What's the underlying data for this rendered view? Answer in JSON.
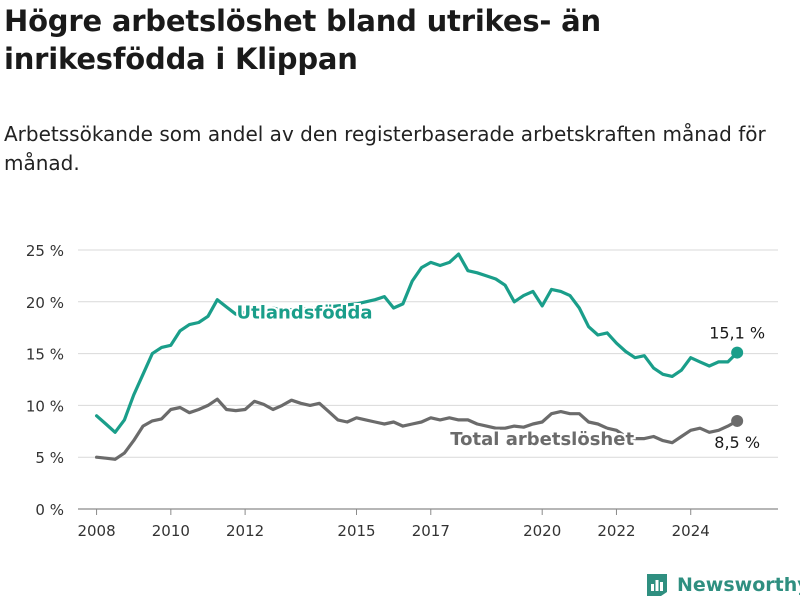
{
  "title": "Högre arbetslöshet bland utrikes- än inrikesfödda i Klippan",
  "subtitle": "Arbetssökande som andel av den registerbaserade arbetskraften månad för månad.",
  "brand": "Newsworthy",
  "colors": {
    "utlandsfodda": "#1a9e8a",
    "total": "#6b6b6b",
    "grid": "#d9d9d9",
    "brand": "#2f8f80"
  },
  "chart_data": {
    "type": "line",
    "y_ticks": [
      "0 %",
      "5 %",
      "10 %",
      "15 %",
      "20 %",
      "25 %"
    ],
    "x_ticks": [
      "2008",
      "2010",
      "2012",
      "2015",
      "2017",
      "2020",
      "2022",
      "2024"
    ],
    "ylim": [
      0,
      25
    ],
    "grid": true,
    "series": [
      {
        "name": "Utlandsfödda",
        "end_label": "15,1 %",
        "points": [
          [
            2008.0,
            9.0
          ],
          [
            2008.25,
            8.2
          ],
          [
            2008.5,
            7.4
          ],
          [
            2008.75,
            8.6
          ],
          [
            2009.0,
            11.0
          ],
          [
            2009.25,
            13.0
          ],
          [
            2009.5,
            15.0
          ],
          [
            2009.75,
            15.6
          ],
          [
            2010.0,
            15.8
          ],
          [
            2010.25,
            17.2
          ],
          [
            2010.5,
            17.8
          ],
          [
            2010.75,
            18.0
          ],
          [
            2011.0,
            18.6
          ],
          [
            2011.25,
            20.2
          ],
          [
            2011.5,
            19.5
          ],
          [
            2011.75,
            18.8
          ],
          [
            2012.0,
            19.0
          ],
          [
            2012.25,
            19.6
          ],
          [
            2012.5,
            18.7
          ],
          [
            2012.75,
            19.4
          ],
          [
            2013.0,
            19.2
          ],
          [
            2013.5,
            19.3
          ],
          [
            2014.0,
            19.4
          ],
          [
            2014.5,
            19.6
          ],
          [
            2015.0,
            19.8
          ],
          [
            2015.5,
            20.2
          ],
          [
            2015.75,
            20.5
          ],
          [
            2016.0,
            19.4
          ],
          [
            2016.25,
            19.8
          ],
          [
            2016.5,
            22.0
          ],
          [
            2016.75,
            23.3
          ],
          [
            2017.0,
            23.8
          ],
          [
            2017.25,
            23.5
          ],
          [
            2017.5,
            23.8
          ],
          [
            2017.75,
            24.6
          ],
          [
            2018.0,
            23.0
          ],
          [
            2018.25,
            22.8
          ],
          [
            2018.5,
            22.5
          ],
          [
            2018.75,
            22.2
          ],
          [
            2019.0,
            21.6
          ],
          [
            2019.25,
            20.0
          ],
          [
            2019.5,
            20.6
          ],
          [
            2019.75,
            21.0
          ],
          [
            2020.0,
            19.6
          ],
          [
            2020.25,
            21.2
          ],
          [
            2020.5,
            21.0
          ],
          [
            2020.75,
            20.6
          ],
          [
            2021.0,
            19.4
          ],
          [
            2021.25,
            17.6
          ],
          [
            2021.5,
            16.8
          ],
          [
            2021.75,
            17.0
          ],
          [
            2022.0,
            16.0
          ],
          [
            2022.25,
            15.2
          ],
          [
            2022.5,
            14.6
          ],
          [
            2022.75,
            14.8
          ],
          [
            2023.0,
            13.6
          ],
          [
            2023.25,
            13.0
          ],
          [
            2023.5,
            12.8
          ],
          [
            2023.75,
            13.4
          ],
          [
            2024.0,
            14.6
          ],
          [
            2024.25,
            14.2
          ],
          [
            2024.5,
            13.8
          ],
          [
            2024.75,
            14.2
          ],
          [
            2025.0,
            14.2
          ],
          [
            2025.25,
            15.1
          ]
        ]
      },
      {
        "name": "Total arbetslöshet",
        "end_label": "8,5 %",
        "points": [
          [
            2008.0,
            5.0
          ],
          [
            2008.25,
            4.9
          ],
          [
            2008.5,
            4.8
          ],
          [
            2008.75,
            5.4
          ],
          [
            2009.0,
            6.6
          ],
          [
            2009.25,
            8.0
          ],
          [
            2009.5,
            8.5
          ],
          [
            2009.75,
            8.7
          ],
          [
            2010.0,
            9.6
          ],
          [
            2010.25,
            9.8
          ],
          [
            2010.5,
            9.3
          ],
          [
            2010.75,
            9.6
          ],
          [
            2011.0,
            10.0
          ],
          [
            2011.25,
            10.6
          ],
          [
            2011.5,
            9.6
          ],
          [
            2011.75,
            9.5
          ],
          [
            2012.0,
            9.6
          ],
          [
            2012.25,
            10.4
          ],
          [
            2012.5,
            10.1
          ],
          [
            2012.75,
            9.6
          ],
          [
            2013.0,
            10.0
          ],
          [
            2013.25,
            10.5
          ],
          [
            2013.5,
            10.2
          ],
          [
            2013.75,
            10.0
          ],
          [
            2014.0,
            10.2
          ],
          [
            2014.25,
            9.4
          ],
          [
            2014.5,
            8.6
          ],
          [
            2014.75,
            8.4
          ],
          [
            2015.0,
            8.8
          ],
          [
            2015.25,
            8.6
          ],
          [
            2015.5,
            8.4
          ],
          [
            2015.75,
            8.2
          ],
          [
            2016.0,
            8.4
          ],
          [
            2016.25,
            8.0
          ],
          [
            2016.5,
            8.2
          ],
          [
            2016.75,
            8.4
          ],
          [
            2017.0,
            8.8
          ],
          [
            2017.25,
            8.6
          ],
          [
            2017.5,
            8.8
          ],
          [
            2017.75,
            8.6
          ],
          [
            2018.0,
            8.6
          ],
          [
            2018.25,
            8.2
          ],
          [
            2018.5,
            8.0
          ],
          [
            2018.75,
            7.8
          ],
          [
            2019.0,
            7.8
          ],
          [
            2019.25,
            8.0
          ],
          [
            2019.5,
            7.9
          ],
          [
            2019.75,
            8.2
          ],
          [
            2020.0,
            8.4
          ],
          [
            2020.25,
            9.2
          ],
          [
            2020.5,
            9.4
          ],
          [
            2020.75,
            9.2
          ],
          [
            2021.0,
            9.2
          ],
          [
            2021.25,
            8.4
          ],
          [
            2021.5,
            8.2
          ],
          [
            2021.75,
            7.8
          ],
          [
            2022.0,
            7.6
          ],
          [
            2022.25,
            7.0
          ],
          [
            2022.5,
            6.8
          ],
          [
            2022.75,
            6.8
          ],
          [
            2023.0,
            7.0
          ],
          [
            2023.25,
            6.6
          ],
          [
            2023.5,
            6.4
          ],
          [
            2023.75,
            7.0
          ],
          [
            2024.0,
            7.6
          ],
          [
            2024.25,
            7.8
          ],
          [
            2024.5,
            7.4
          ],
          [
            2024.75,
            7.6
          ],
          [
            2025.0,
            8.0
          ],
          [
            2025.25,
            8.5
          ]
        ]
      }
    ]
  }
}
